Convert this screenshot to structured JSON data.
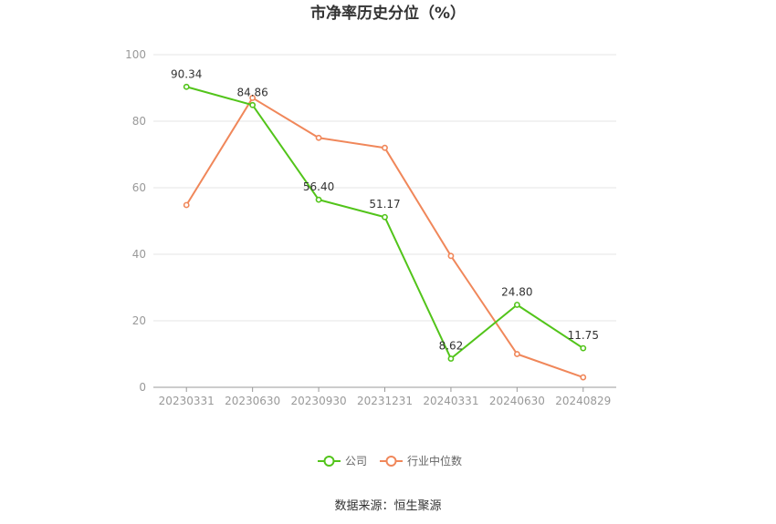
{
  "chart_data": {
    "type": "line",
    "title": "市净率历史分位（%）",
    "categories": [
      "20230331",
      "20230630",
      "20230930",
      "20231231",
      "20240331",
      "20240630",
      "20240829"
    ],
    "ylim": [
      0,
      100
    ],
    "yticks": [
      0,
      20,
      40,
      60,
      80,
      100
    ],
    "grid": true,
    "legend_position": "bottom-center",
    "series": [
      {
        "name": "公司",
        "color": "#52c41a",
        "values": [
          90.34,
          84.86,
          56.4,
          51.17,
          8.62,
          24.8,
          11.75
        ],
        "labels": [
          "90.34",
          "84.86",
          "56.40",
          "51.17",
          "8.62",
          "24.80",
          "11.75"
        ]
      },
      {
        "name": "行业中位数",
        "color": "#f0875a",
        "values": [
          54.8,
          87.0,
          75.0,
          72.0,
          39.5,
          10.0,
          3.0
        ]
      }
    ],
    "source": "数据来源：恒生聚源"
  }
}
